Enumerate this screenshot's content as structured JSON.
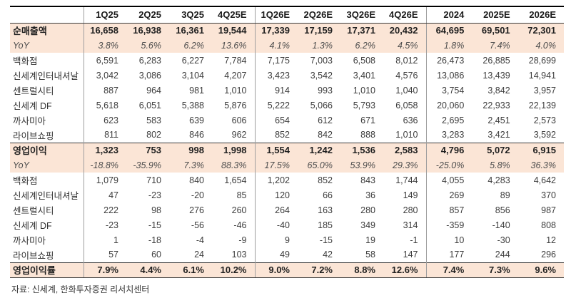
{
  "table": {
    "columns": [
      "",
      "1Q25",
      "2Q25",
      "3Q25",
      "4Q25E",
      "1Q26E",
      "2Q26E",
      "3Q26E",
      "4Q26E",
      "2024",
      "2025E",
      "2026E"
    ],
    "group_separators": [
      0,
      4,
      8
    ],
    "rows": [
      {
        "label": "순매출액",
        "style": "total",
        "values": [
          "16,658",
          "16,938",
          "16,361",
          "19,544",
          "17,339",
          "17,159",
          "17,371",
          "20,432",
          "64,695",
          "69,501",
          "72,301"
        ]
      },
      {
        "label": "YoY",
        "style": "yoy",
        "values": [
          "3.8%",
          "5.6%",
          "6.2%",
          "13.6%",
          "4.1%",
          "1.3%",
          "6.2%",
          "4.5%",
          "1.8%",
          "7.4%",
          "4.0%"
        ]
      },
      {
        "label": "백화점",
        "style": "",
        "values": [
          "6,591",
          "6,283",
          "6,227",
          "7,784",
          "7,175",
          "7,003",
          "6,508",
          "8,012",
          "26,473",
          "26,885",
          "28,699"
        ]
      },
      {
        "label": "신세계인터내셔날",
        "style": "",
        "values": [
          "3,042",
          "3,086",
          "3,104",
          "4,207",
          "3,423",
          "3,542",
          "3,401",
          "4,576",
          "13,086",
          "13,439",
          "14,941"
        ]
      },
      {
        "label": "센트럴시티",
        "style": "",
        "values": [
          "887",
          "964",
          "981",
          "1,010",
          "914",
          "993",
          "1,010",
          "1,040",
          "3,754",
          "3,842",
          "3,957"
        ]
      },
      {
        "label": "신세계 DF",
        "style": "",
        "values": [
          "5,618",
          "6,051",
          "5,388",
          "5,876",
          "5,222",
          "5,066",
          "5,793",
          "6,058",
          "20,060",
          "22,933",
          "22,139"
        ]
      },
      {
        "label": "까사미아",
        "style": "",
        "values": [
          "623",
          "583",
          "639",
          "606",
          "654",
          "612",
          "671",
          "636",
          "2,695",
          "2,451",
          "2,573"
        ]
      },
      {
        "label": "라이브쇼핑",
        "style": "",
        "values": [
          "811",
          "802",
          "846",
          "962",
          "852",
          "842",
          "888",
          "1,010",
          "3,283",
          "3,421",
          "3,592"
        ]
      },
      {
        "label": "영업이익",
        "style": "total rule-top",
        "values": [
          "1,323",
          "753",
          "998",
          "1,998",
          "1,554",
          "1,242",
          "1,536",
          "2,583",
          "4,796",
          "5,072",
          "6,915"
        ]
      },
      {
        "label": "YoY",
        "style": "yoy",
        "values": [
          "-18.8%",
          "-35.9%",
          "7.3%",
          "88.3%",
          "17.5%",
          "65.0%",
          "53.9%",
          "29.3%",
          "-25.0%",
          "5.8%",
          "36.3%"
        ]
      },
      {
        "label": "백화점",
        "style": "",
        "values": [
          "1,079",
          "710",
          "840",
          "1,654",
          "1,202",
          "852",
          "843",
          "1,744",
          "4,055",
          "4,283",
          "4,642"
        ]
      },
      {
        "label": "신세계인터내셔날",
        "style": "",
        "values": [
          "47",
          "-23",
          "-20",
          "85",
          "120",
          "66",
          "36",
          "149",
          "269",
          "89",
          "370"
        ]
      },
      {
        "label": "센트럴시티",
        "style": "",
        "values": [
          "222",
          "98",
          "276",
          "260",
          "264",
          "163",
          "280",
          "280",
          "857",
          "856",
          "987"
        ]
      },
      {
        "label": "신세계 DF",
        "style": "",
        "values": [
          "-23",
          "-15",
          "-56",
          "-46",
          "-40",
          "185",
          "349",
          "314",
          "-359",
          "-140",
          "808"
        ]
      },
      {
        "label": "까사미아",
        "style": "",
        "values": [
          "1",
          "-18",
          "-4",
          "-9",
          "9",
          "-15",
          "19",
          "-1",
          "10",
          "-30",
          "12"
        ]
      },
      {
        "label": "라이브쇼핑",
        "style": "",
        "values": [
          "57",
          "60",
          "24",
          "103",
          "49",
          "42",
          "58",
          "147",
          "177",
          "244",
          "296"
        ]
      },
      {
        "label": "영업이익률",
        "style": "total rule-top",
        "values": [
          "7.9%",
          "4.4%",
          "6.1%",
          "10.2%",
          "9.0%",
          "7.2%",
          "8.8%",
          "12.6%",
          "7.4%",
          "7.3%",
          "9.6%"
        ]
      }
    ]
  },
  "footer": {
    "source": "자료: 신세계, 한화투자증권 리서치센터"
  },
  "colors": {
    "highlight": "#fbe5d6",
    "rule": "#3a3a3a",
    "separator": "#9e9e9e",
    "text": "#3d3d3d"
  }
}
